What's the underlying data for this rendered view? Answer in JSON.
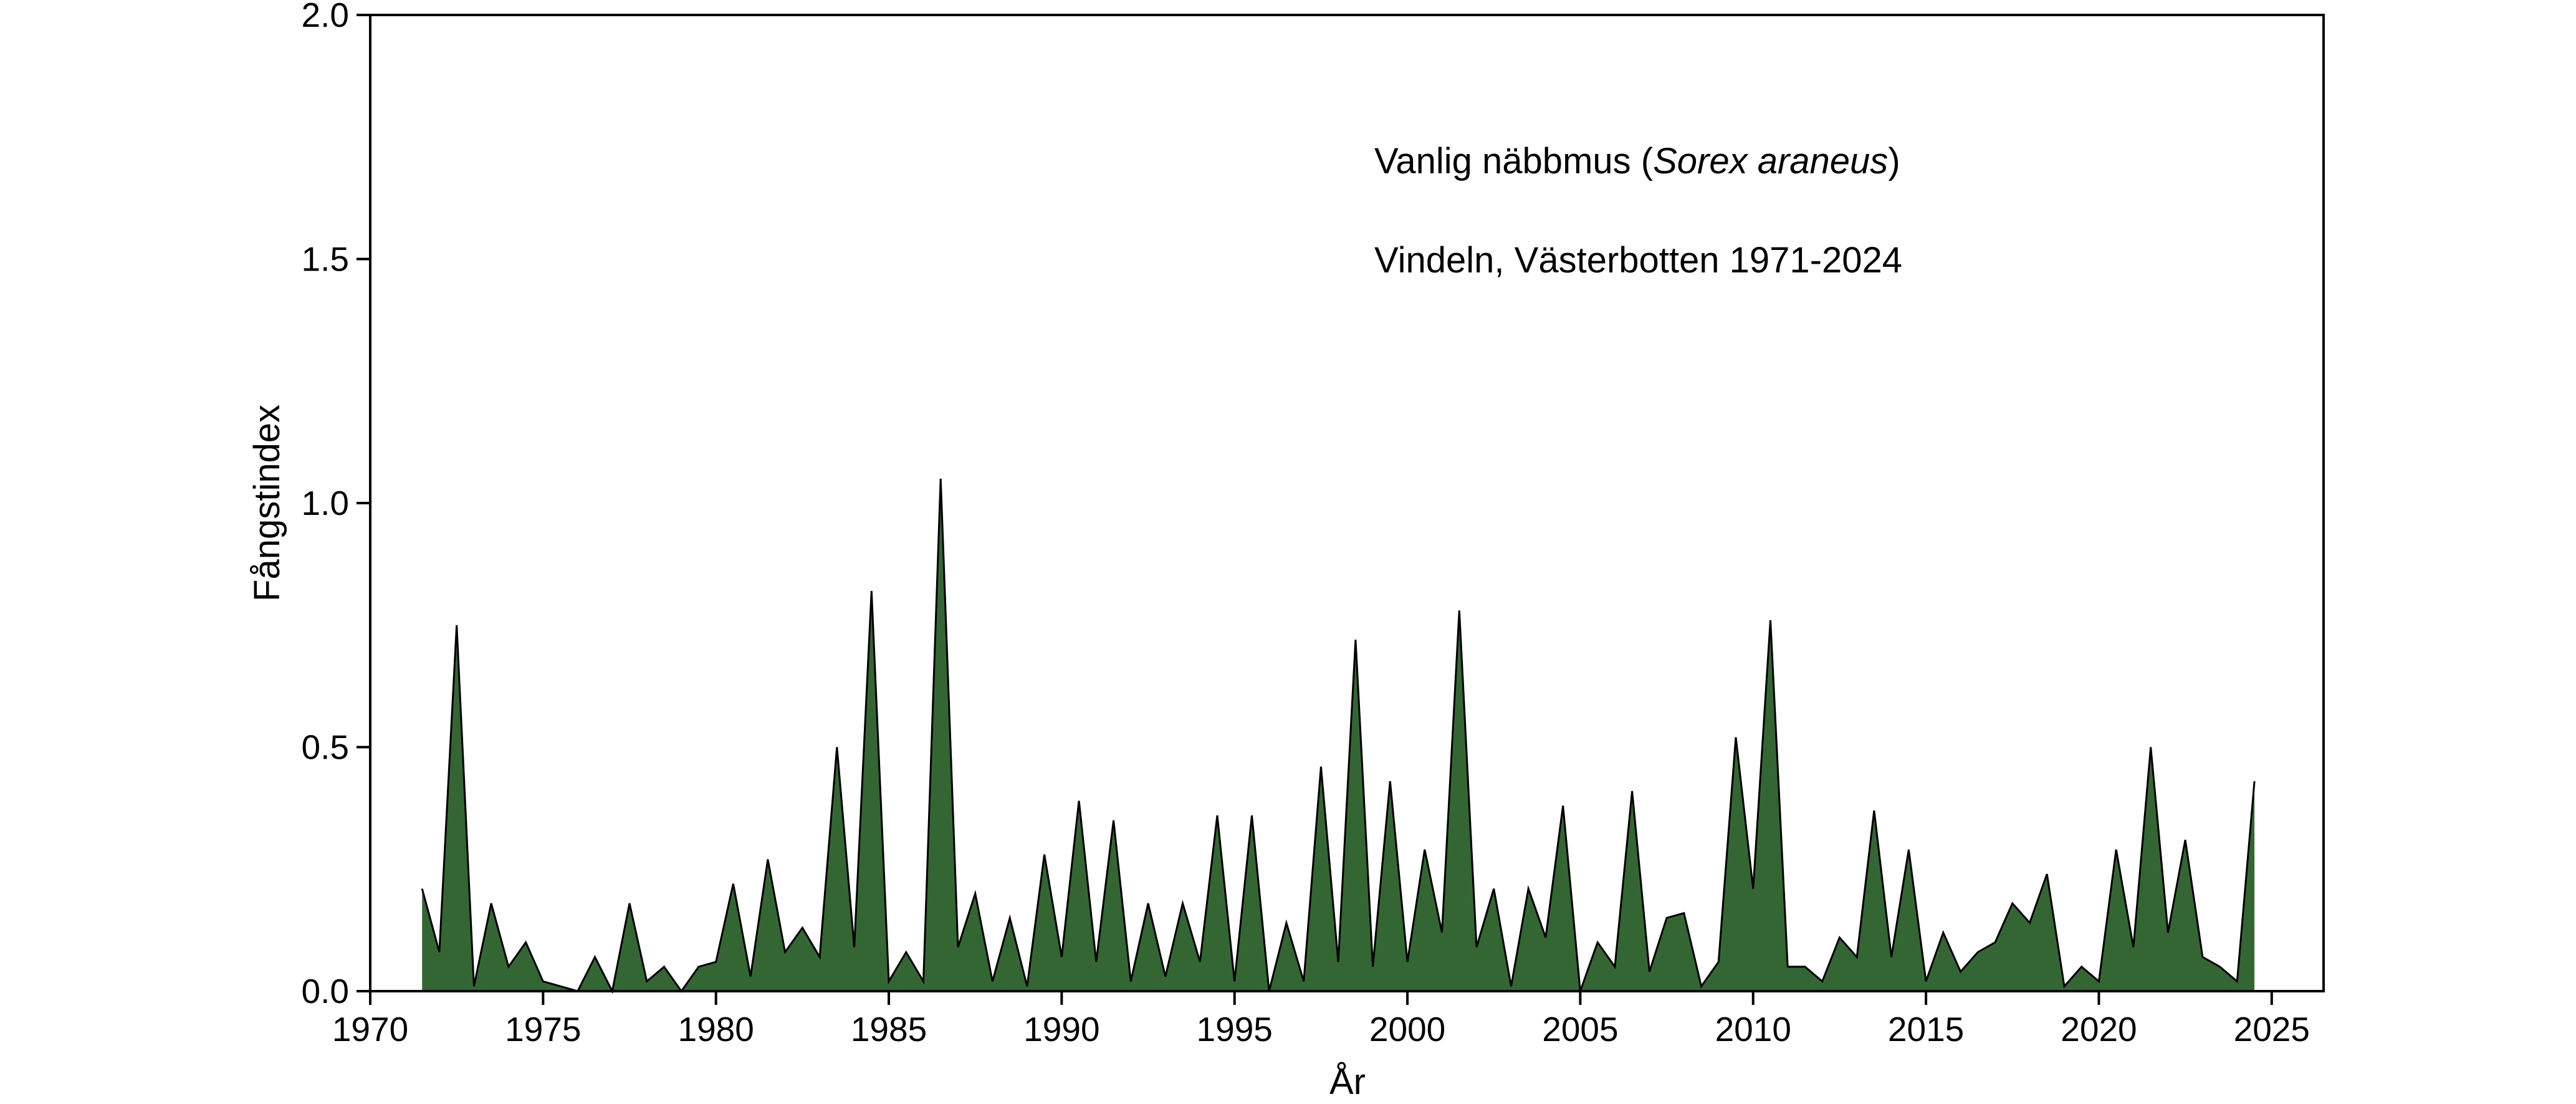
{
  "chart_data": {
    "type": "area",
    "title": "",
    "annotation": {
      "line1_prefix": "Vanlig näbbmus (",
      "line1_italic": "Sorex araneus",
      "line1_suffix": ")",
      "line2": "Vindeln, Västerbotten 1971-2024"
    },
    "xlabel": "År",
    "ylabel": "Fångstindex",
    "xlim": [
      1970,
      2026.5
    ],
    "ylim": [
      0,
      2.0
    ],
    "xticks": [
      "1970",
      "1975",
      "1980",
      "1985",
      "1990",
      "1995",
      "2000",
      "2005",
      "2010",
      "2015",
      "2020",
      "2025"
    ],
    "yticks": [
      "0.0",
      "0.5",
      "1.0",
      "1.5",
      "2.0"
    ],
    "fill_color": "#336633",
    "line_color": "#000000",
    "grid": false,
    "series": [
      {
        "x": [
          1971.5,
          1972,
          1972.5,
          1973,
          1973.5,
          1974,
          1974.5,
          1975,
          1976,
          1976.5,
          1977,
          1977.5,
          1978,
          1978.5,
          1979,
          1979.5,
          1980,
          1980.5,
          1981,
          1981.5,
          1982,
          1982.5,
          1983,
          1983.5,
          1984,
          1984.5,
          1985,
          1985.5,
          1986,
          1986.5,
          1987,
          1987.5,
          1988,
          1988.5,
          1989,
          1989.5,
          1990,
          1990.5,
          1991,
          1991.5,
          1992,
          1992.5,
          1993,
          1993.5,
          1994,
          1994.5,
          1995,
          1995.5,
          1996,
          1996.5,
          1997,
          1997.5,
          1998,
          1998.5,
          1999,
          1999.5,
          2000,
          2000.5,
          2001,
          2001.5,
          2002,
          2002.5,
          2003,
          2003.5,
          2004,
          2004.5,
          2005,
          2005.5,
          2006,
          2006.5,
          2007,
          2007.5,
          2008,
          2008.5,
          2009,
          2009.5,
          2010,
          2010.5,
          2011,
          2011.5,
          2012,
          2012.5,
          2013,
          2013.5,
          2014,
          2014.5,
          2015,
          2015.5,
          2016,
          2016.5,
          2017,
          2017.5,
          2018,
          2018.5,
          2019,
          2019.5,
          2020,
          2020.5,
          2021,
          2021.5,
          2022,
          2022.5,
          2023,
          2023.5,
          2024,
          2024.5
        ],
        "values": [
          0.21,
          0.08,
          0.75,
          0.01,
          0.18,
          0.05,
          0.1,
          0.02,
          0.0,
          0.07,
          0.0,
          0.18,
          0.02,
          0.05,
          0.0,
          0.05,
          0.06,
          0.22,
          0.03,
          0.27,
          0.08,
          0.13,
          0.07,
          0.5,
          0.09,
          0.82,
          0.02,
          0.08,
          0.02,
          1.05,
          0.09,
          0.2,
          0.02,
          0.15,
          0.01,
          0.28,
          0.07,
          0.39,
          0.06,
          0.35,
          0.02,
          0.18,
          0.03,
          0.18,
          0.06,
          0.36,
          0.02,
          0.36,
          0.0,
          0.14,
          0.02,
          0.46,
          0.06,
          0.72,
          0.05,
          0.43,
          0.06,
          0.29,
          0.12,
          0.78,
          0.09,
          0.21,
          0.01,
          0.21,
          0.11,
          0.38,
          0.0,
          0.1,
          0.05,
          0.41,
          0.04,
          0.15,
          0.16,
          0.01,
          0.06,
          0.52,
          0.21,
          0.76,
          0.05,
          0.05,
          0.02,
          0.11,
          0.07,
          0.37,
          0.07,
          0.29,
          0.02,
          0.12,
          0.04,
          0.08,
          0.1,
          0.18,
          0.14,
          0.24,
          0.01,
          0.05,
          0.02,
          0.29,
          0.09,
          0.5,
          0.12,
          0.31,
          0.07,
          0.05,
          0.02,
          0.43
        ]
      }
    ]
  }
}
